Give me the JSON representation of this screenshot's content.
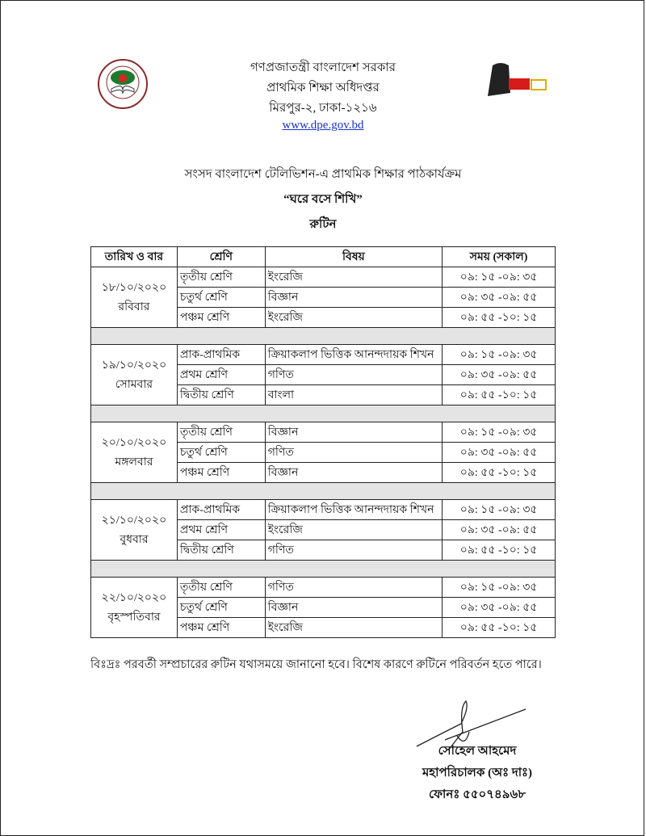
{
  "header": {
    "line1": "গণপ্রজাতন্ত্রী বাংলাদেশ সরকার",
    "line2": "প্রাথমিক শিক্ষা অধিদপ্তর",
    "line3": "মিরপুর-২, ঢাকা-১২১৬",
    "url": "www.dpe.gov.bd",
    "left_logo": "শেখ হাসিনার বাংলাদেশ",
    "right_logo": "মুজিব শতবর্ষ 100"
  },
  "title": {
    "line1": "সংসদ বাংলাদেশ টেলিভিশন-এ প্রাথমিক শিক্ষার পাঠকার্যক্রম",
    "line2": "“ঘরে বসে শিখি”",
    "line3": "রুটিন"
  },
  "table": {
    "headers": [
      "তারিখ ও বার",
      "শ্রেণি",
      "বিষয়",
      "সময় (সকাল)"
    ],
    "groups": [
      {
        "date": "১৮/১০/২০২০",
        "day": "রবিবার",
        "rows": [
          [
            "তৃতীয় শ্রেণি",
            "ইংরেজি",
            "০৯: ১৫ -০৯: ৩৫"
          ],
          [
            "চতুর্থ শ্রেণি",
            "বিজ্ঞান",
            "০৯: ৩৫ -০৯: ৫৫"
          ],
          [
            "পঞ্চম শ্রেণি",
            "ইংরেজি",
            "০৯: ৫৫ -১০: ১৫"
          ]
        ]
      },
      {
        "date": "১৯/১০/২০২০",
        "day": "সোমবার",
        "rows": [
          [
            "প্রাক-প্রাথমিক",
            "ক্রিয়াকলাপ ভিত্তিক আনন্দদায়ক শিখন",
            "০৯: ১৫ -০৯: ৩৫"
          ],
          [
            "প্রথম শ্রেণি",
            "গণিত",
            "০৯: ৩৫ -০৯: ৫৫"
          ],
          [
            "দ্বিতীয় শ্রেণি",
            "বাংলা",
            "০৯: ৫৫ -১০: ১৫"
          ]
        ]
      },
      {
        "date": "২০/১০/২০২০",
        "day": "মঙ্গলবার",
        "rows": [
          [
            "তৃতীয় শ্রেণি",
            "বিজ্ঞান",
            "০৯: ১৫ -০৯: ৩৫"
          ],
          [
            "চতুর্থ শ্রেণি",
            "গণিত",
            "০৯: ৩৫ -০৯: ৫৫"
          ],
          [
            "পঞ্চম শ্রেণি",
            "বিজ্ঞান",
            "০৯: ৫৫ -১০: ১৫"
          ]
        ]
      },
      {
        "date": "২১/১০/২০২০",
        "day": "বুধবার",
        "rows": [
          [
            "প্রাক-প্রাথমিক",
            "ক্রিয়াকলাপ ভিত্তিক আনন্দদায়ক শিখন",
            "০৯: ১৫ -০৯: ৩৫"
          ],
          [
            "প্রথম শ্রেণি",
            "ইংরেজি",
            "০৯: ৩৫ -০৯: ৫৫"
          ],
          [
            "দ্বিতীয় শ্রেণি",
            "গণিত",
            "০৯: ৫৫ -১০: ১৫"
          ]
        ]
      },
      {
        "date": "২২/১০/২০২০",
        "day": "বৃহস্পতিবার",
        "rows": [
          [
            "তৃতীয় শ্রেণি",
            "গণিত",
            "০৯: ১৫ -০৯: ৩৫"
          ],
          [
            "চতুর্থ শ্রেণি",
            "বিজ্ঞান",
            "০৯: ৩৫ -০৯: ৫৫"
          ],
          [
            "পঞ্চম শ্রেণি",
            "ইংরেজি",
            "০৯: ৫৫ -১০: ১৫"
          ]
        ]
      }
    ]
  },
  "note": "বিঃদ্রঃ পরবর্তী সম্প্রচারের রুটিন যথাসময়ে জানানো হবে। বিশেষ কারণে রুটিনে পরিবর্তন হতে পারে।",
  "signatory": {
    "name": "সোহেল আহমেদ",
    "designation": "মহাপরিচালক (অঃ দাঃ)",
    "phone": "ফোনঃ ৫৫০৭৪৯৬৮"
  }
}
